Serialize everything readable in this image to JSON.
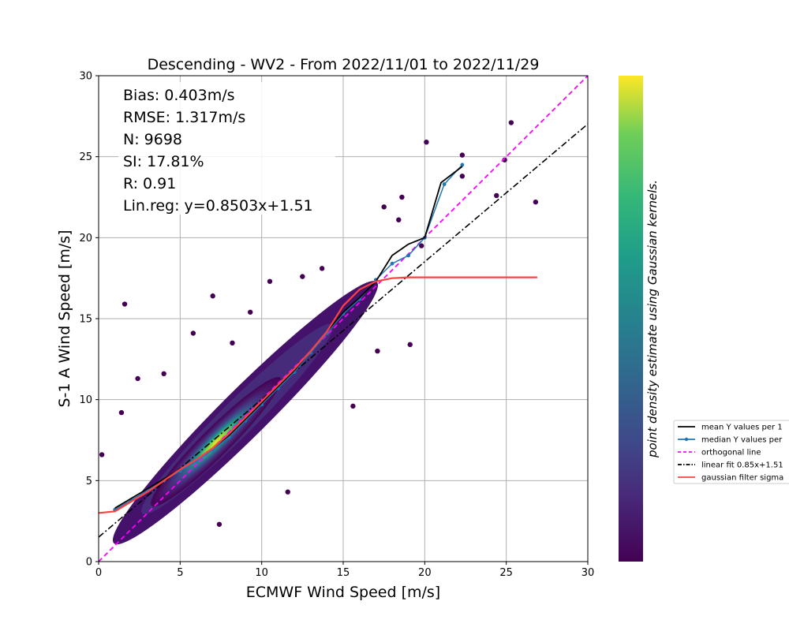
{
  "chart_data": {
    "type": "scatter",
    "title": "Descending - WV2 - From 2022/11/01 to 2022/11/29",
    "xlabel": "ECMWF Wind Speed [m/s]",
    "ylabel": "S-1 A Wind Speed [m/s]",
    "xlim": [
      0,
      30
    ],
    "ylim": [
      0,
      30
    ],
    "xticks": [
      "0",
      "5",
      "10",
      "15",
      "20",
      "25",
      "30"
    ],
    "yticks": [
      "0",
      "5",
      "10",
      "15",
      "20",
      "25",
      "30"
    ],
    "grid": true,
    "colormap": "viridis",
    "colorbar_label": "point density estimate using Gaussian kernels.",
    "stats": [
      "Bias: 0.403m/s",
      "RMSE: 1.317m/s",
      "N: 9698",
      "SI: 17.81%",
      "R: 0.91",
      "Lin.reg: y=0.8503x+1.51"
    ],
    "legend_position": "right, outside plot",
    "legend": [
      {
        "label": "mean Y values per 1",
        "color": "#000000",
        "style": "solid"
      },
      {
        "label": "median Y values per",
        "color": "#1f77b4",
        "style": "solid-dot"
      },
      {
        "label": "orthogonal line",
        "color": "#ff00ff",
        "style": "dashed"
      },
      {
        "label": "linear fit 0.85x+1.51",
        "color": "#000000",
        "style": "dashdot"
      },
      {
        "label": "gaussian filter sigma",
        "color": "#ff4040",
        "style": "solid"
      }
    ],
    "series": [
      {
        "name": "mean Y values per 1",
        "color": "#000000",
        "x": [
          1,
          2,
          3,
          4,
          5,
          6,
          7,
          8,
          9,
          10,
          11,
          12,
          13,
          14,
          15,
          16,
          17,
          18,
          19,
          20,
          21,
          22.3
        ],
        "y": [
          3.3,
          3.9,
          4.5,
          5.1,
          5.7,
          6.3,
          7.0,
          7.8,
          8.8,
          9.8,
          10.8,
          11.8,
          13.0,
          14.2,
          15.4,
          16.3,
          17.3,
          18.9,
          19.6,
          20.0,
          23.4,
          24.4
        ]
      },
      {
        "name": "median Y values per",
        "color": "#1f77b4",
        "x": [
          1,
          2,
          3,
          4,
          5,
          6,
          7,
          8,
          9,
          10,
          11,
          12,
          13,
          14,
          15,
          16,
          17,
          18,
          19,
          20,
          21.2,
          22.3
        ],
        "y": [
          3.2,
          3.8,
          4.4,
          5.0,
          5.6,
          6.2,
          6.9,
          7.7,
          8.7,
          9.7,
          10.7,
          11.7,
          12.9,
          14.1,
          15.3,
          16.2,
          17.4,
          18.4,
          18.9,
          20.0,
          23.3,
          24.5
        ]
      },
      {
        "name": "orthogonal line",
        "color": "#ff00ff",
        "x": [
          0,
          30
        ],
        "y": [
          0,
          30
        ]
      },
      {
        "name": "linear fit 0.85x+1.51",
        "color": "#000000",
        "x": [
          0,
          30
        ],
        "y": [
          1.51,
          27.02
        ]
      },
      {
        "name": "gaussian filter sigma",
        "color": "#ff4040",
        "x": [
          0,
          1,
          2,
          3,
          4,
          5,
          6,
          7,
          8,
          9,
          10,
          11,
          12,
          13,
          14,
          15,
          16,
          17,
          18,
          19,
          20,
          22,
          24,
          26,
          26.9
        ],
        "y": [
          3.0,
          3.1,
          3.7,
          4.3,
          5.0,
          5.7,
          6.3,
          7.0,
          7.9,
          8.9,
          9.9,
          10.9,
          11.9,
          13.0,
          14.2,
          15.8,
          16.8,
          17.3,
          17.5,
          17.55,
          17.55,
          17.55,
          17.55,
          17.55,
          17.55
        ]
      }
    ],
    "outliers": [
      {
        "x": 1.6,
        "y": 15.9
      },
      {
        "x": 7.0,
        "y": 16.4
      },
      {
        "x": 5.8,
        "y": 14.1
      },
      {
        "x": 4.0,
        "y": 11.6
      },
      {
        "x": 2.4,
        "y": 11.3
      },
      {
        "x": 1.4,
        "y": 9.2
      },
      {
        "x": 0.2,
        "y": 6.6
      },
      {
        "x": 11.6,
        "y": 4.3
      },
      {
        "x": 7.4,
        "y": 2.3
      },
      {
        "x": 15.6,
        "y": 9.6
      },
      {
        "x": 17.1,
        "y": 13.0
      },
      {
        "x": 19.1,
        "y": 13.4
      },
      {
        "x": 10.5,
        "y": 17.3
      },
      {
        "x": 12.5,
        "y": 17.6
      },
      {
        "x": 20.1,
        "y": 25.9
      },
      {
        "x": 22.3,
        "y": 25.1
      },
      {
        "x": 25.3,
        "y": 27.1
      },
      {
        "x": 26.8,
        "y": 22.2
      },
      {
        "x": 24.9,
        "y": 24.8
      },
      {
        "x": 24.4,
        "y": 22.6
      },
      {
        "x": 18.6,
        "y": 22.5
      },
      {
        "x": 17.5,
        "y": 21.9
      },
      {
        "x": 19.8,
        "y": 19.5
      },
      {
        "x": 18.4,
        "y": 21.1
      },
      {
        "x": 22.3,
        "y": 23.8
      },
      {
        "x": 8.2,
        "y": 13.5
      },
      {
        "x": 9.3,
        "y": 15.4
      },
      {
        "x": 13.7,
        "y": 18.1
      }
    ]
  }
}
